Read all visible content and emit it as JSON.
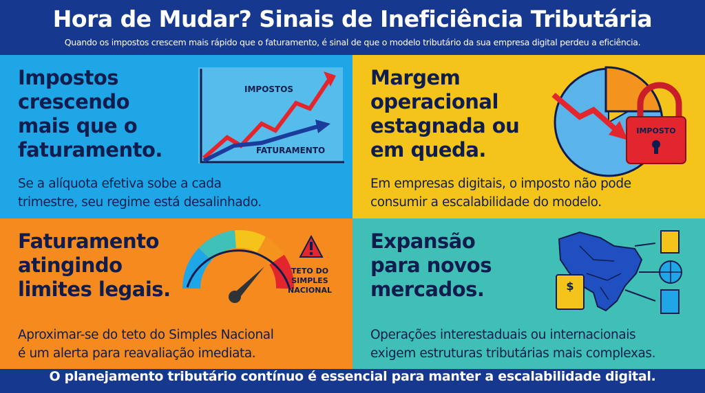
{
  "header": {
    "title": "Hora de Mudar? Sinais de Ineficiência Tributária",
    "subtitle": "Quando os impostos crescem mais rápido que o faturamento, é sinal de que o modelo tributário da sua empresa digital perdeu a eficiência."
  },
  "panels": [
    {
      "title_lines": [
        "Impostos",
        "crescendo",
        "mais que o",
        "faturamento."
      ],
      "description_lines": [
        "Se a alíquota efetiva sobe a cada",
        "trimestre, seu regime está desalinhado."
      ],
      "icon_labels": [
        "IMPOSTOS",
        "FATURAMENTO"
      ]
    },
    {
      "title_lines": [
        "Margem",
        "operacional",
        "estagnada ou",
        "em queda."
      ],
      "description_lines": [
        "Em empresas digitais, o imposto não pode",
        "consumir a escalabilidade do modelo."
      ],
      "icon_labels": [
        "IMPOSTO"
      ]
    },
    {
      "title_lines": [
        "Faturamento",
        "atingindo",
        "limites legais."
      ],
      "description_lines": [
        "Aproximar-se do teto do Simples Nacional",
        "é um alerta para reavaliação imediata."
      ],
      "icon_labels": [
        "TETO DO",
        "SIMPLES",
        "NACIONAL"
      ]
    },
    {
      "title_lines": [
        "Expansão",
        "para novos",
        "mercados."
      ],
      "description_lines": [
        "Operações interestaduais ou internacionais",
        "exigem estruturas tributárias mais complexas."
      ]
    }
  ],
  "footer": "O planejamento tributário contínuo é essencial para manter a escalabilidade digital."
}
